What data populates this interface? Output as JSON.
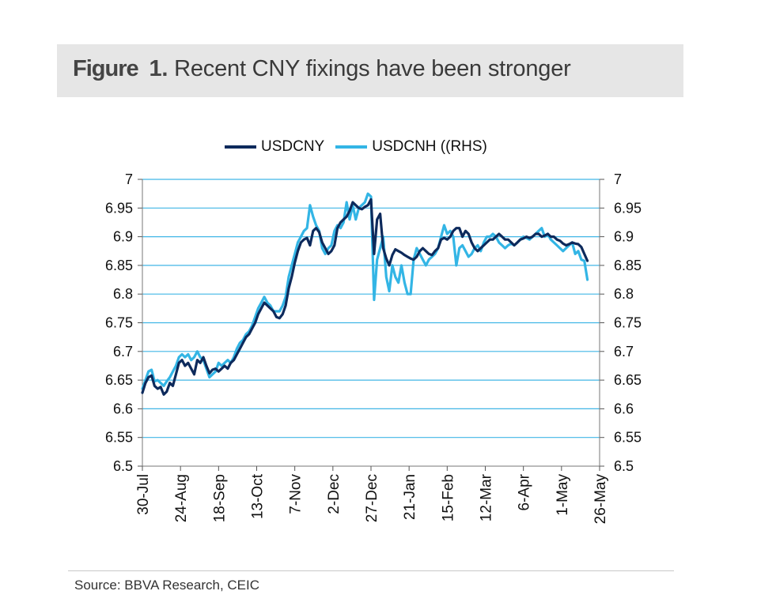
{
  "figure": {
    "label": "Figure",
    "number": "1.",
    "caption": "Recent CNY fixings have been stronger"
  },
  "source": "Source:  BBVA Research,  CEIC",
  "chart_data": {
    "type": "line",
    "title": "",
    "xlabel": "",
    "ylabel": "",
    "y_left": {
      "min": 6.5,
      "max": 7.0,
      "step": 0.05,
      "ticks": [
        "6.5",
        "6.55",
        "6.6",
        "6.65",
        "6.7",
        "6.75",
        "6.8",
        "6.85",
        "6.9",
        "6.95",
        "7"
      ]
    },
    "y_right": {
      "min": 6.5,
      "max": 7.0,
      "step": 0.05,
      "ticks": [
        "6.5",
        "6.55",
        "6.6",
        "6.65",
        "6.7",
        "6.75",
        "6.8",
        "6.85",
        "6.9",
        "6.95",
        "7"
      ]
    },
    "x_ticks": [
      "30-Jul",
      "24-Aug",
      "18-Sep",
      "13-Oct",
      "7-Nov",
      "2-Dec",
      "27-Dec",
      "21-Jan",
      "15-Feb",
      "12-Mar",
      "6-Apr",
      "1-May",
      "26-May"
    ],
    "x_domain_days": [
      0,
      300
    ],
    "grid": "horizontal",
    "legend_position": "top-center",
    "series": [
      {
        "name": "USDCNY",
        "axis": "left",
        "color": "#0d2a5c",
        "points": [
          [
            0,
            6.628
          ],
          [
            2,
            6.645
          ],
          [
            4,
            6.655
          ],
          [
            6,
            6.658
          ],
          [
            8,
            6.64
          ],
          [
            10,
            6.635
          ],
          [
            12,
            6.638
          ],
          [
            14,
            6.625
          ],
          [
            16,
            6.63
          ],
          [
            18,
            6.645
          ],
          [
            20,
            6.64
          ],
          [
            22,
            6.66
          ],
          [
            24,
            6.68
          ],
          [
            26,
            6.685
          ],
          [
            28,
            6.675
          ],
          [
            30,
            6.68
          ],
          [
            32,
            6.67
          ],
          [
            34,
            6.66
          ],
          [
            36,
            6.685
          ],
          [
            38,
            6.68
          ],
          [
            40,
            6.69
          ],
          [
            42,
            6.675
          ],
          [
            44,
            6.662
          ],
          [
            46,
            6.668
          ],
          [
            48,
            6.67
          ],
          [
            50,
            6.665
          ],
          [
            52,
            6.67
          ],
          [
            54,
            6.675
          ],
          [
            56,
            6.67
          ],
          [
            58,
            6.68
          ],
          [
            60,
            6.685
          ],
          [
            62,
            6.695
          ],
          [
            64,
            6.705
          ],
          [
            66,
            6.715
          ],
          [
            68,
            6.725
          ],
          [
            70,
            6.73
          ],
          [
            72,
            6.74
          ],
          [
            74,
            6.75
          ],
          [
            76,
            6.765
          ],
          [
            78,
            6.775
          ],
          [
            80,
            6.785
          ],
          [
            82,
            6.78
          ],
          [
            84,
            6.775
          ],
          [
            86,
            6.77
          ],
          [
            88,
            6.76
          ],
          [
            90,
            6.758
          ],
          [
            92,
            6.765
          ],
          [
            94,
            6.78
          ],
          [
            96,
            6.81
          ],
          [
            98,
            6.83
          ],
          [
            100,
            6.855
          ],
          [
            102,
            6.875
          ],
          [
            104,
            6.89
          ],
          [
            106,
            6.895
          ],
          [
            108,
            6.898
          ],
          [
            110,
            6.885
          ],
          [
            112,
            6.91
          ],
          [
            114,
            6.915
          ],
          [
            116,
            6.908
          ],
          [
            118,
            6.89
          ],
          [
            120,
            6.88
          ],
          [
            122,
            6.87
          ],
          [
            124,
            6.875
          ],
          [
            126,
            6.885
          ],
          [
            128,
            6.915
          ],
          [
            130,
            6.925
          ],
          [
            132,
            6.93
          ],
          [
            134,
            6.935
          ],
          [
            136,
            6.945
          ],
          [
            138,
            6.96
          ],
          [
            140,
            6.955
          ],
          [
            142,
            6.95
          ],
          [
            144,
            6.948
          ],
          [
            146,
            6.952
          ],
          [
            148,
            6.955
          ],
          [
            150,
            6.965
          ],
          [
            152,
            6.87
          ],
          [
            154,
            6.93
          ],
          [
            156,
            6.94
          ],
          [
            158,
            6.88
          ],
          [
            160,
            6.862
          ],
          [
            162,
            6.85
          ],
          [
            164,
            6.868
          ],
          [
            166,
            6.878
          ],
          [
            168,
            6.875
          ],
          [
            170,
            6.872
          ],
          [
            172,
            6.868
          ],
          [
            174,
            6.865
          ],
          [
            176,
            6.862
          ],
          [
            178,
            6.86
          ],
          [
            180,
            6.865
          ],
          [
            182,
            6.875
          ],
          [
            184,
            6.88
          ],
          [
            186,
            6.875
          ],
          [
            188,
            6.87
          ],
          [
            190,
            6.868
          ],
          [
            192,
            6.875
          ],
          [
            194,
            6.88
          ],
          [
            196,
            6.895
          ],
          [
            198,
            6.898
          ],
          [
            200,
            6.895
          ],
          [
            202,
            6.9
          ],
          [
            204,
            6.91
          ],
          [
            206,
            6.915
          ],
          [
            208,
            6.915
          ],
          [
            210,
            6.9
          ],
          [
            212,
            6.91
          ],
          [
            214,
            6.905
          ],
          [
            216,
            6.89
          ],
          [
            218,
            6.88
          ],
          [
            220,
            6.875
          ],
          [
            222,
            6.88
          ],
          [
            224,
            6.885
          ],
          [
            226,
            6.89
          ],
          [
            228,
            6.895
          ],
          [
            230,
            6.895
          ],
          [
            232,
            6.9
          ],
          [
            234,
            6.905
          ],
          [
            236,
            6.9
          ],
          [
            238,
            6.895
          ],
          [
            240,
            6.895
          ],
          [
            242,
            6.89
          ],
          [
            244,
            6.885
          ],
          [
            246,
            6.89
          ],
          [
            248,
            6.895
          ],
          [
            250,
            6.897
          ],
          [
            252,
            6.9
          ],
          [
            254,
            6.898
          ],
          [
            256,
            6.9
          ],
          [
            258,
            6.905
          ],
          [
            260,
            6.905
          ],
          [
            262,
            6.9
          ],
          [
            264,
            6.902
          ],
          [
            266,
            6.905
          ],
          [
            268,
            6.9
          ],
          [
            270,
            6.9
          ],
          [
            272,
            6.895
          ],
          [
            274,
            6.893
          ],
          [
            276,
            6.888
          ],
          [
            278,
            6.885
          ],
          [
            280,
            6.887
          ],
          [
            282,
            6.89
          ],
          [
            284,
            6.888
          ],
          [
            286,
            6.887
          ],
          [
            288,
            6.882
          ],
          [
            290,
            6.87
          ],
          [
            292,
            6.858
          ]
        ]
      },
      {
        "name": "USDCNH ((RHS)",
        "axis": "right",
        "color": "#33b5e5",
        "points": [
          [
            0,
            6.635
          ],
          [
            2,
            6.65
          ],
          [
            4,
            6.665
          ],
          [
            6,
            6.668
          ],
          [
            8,
            6.648
          ],
          [
            10,
            6.65
          ],
          [
            12,
            6.645
          ],
          [
            14,
            6.64
          ],
          [
            16,
            6.648
          ],
          [
            18,
            6.655
          ],
          [
            20,
            6.665
          ],
          [
            22,
            6.675
          ],
          [
            24,
            6.69
          ],
          [
            26,
            6.695
          ],
          [
            28,
            6.69
          ],
          [
            30,
            6.695
          ],
          [
            32,
            6.685
          ],
          [
            34,
            6.69
          ],
          [
            36,
            6.7
          ],
          [
            38,
            6.69
          ],
          [
            40,
            6.685
          ],
          [
            42,
            6.67
          ],
          [
            44,
            6.655
          ],
          [
            46,
            6.66
          ],
          [
            48,
            6.665
          ],
          [
            50,
            6.68
          ],
          [
            52,
            6.675
          ],
          [
            54,
            6.68
          ],
          [
            56,
            6.685
          ],
          [
            58,
            6.68
          ],
          [
            60,
            6.69
          ],
          [
            62,
            6.705
          ],
          [
            64,
            6.715
          ],
          [
            66,
            6.72
          ],
          [
            68,
            6.73
          ],
          [
            70,
            6.735
          ],
          [
            72,
            6.745
          ],
          [
            74,
            6.76
          ],
          [
            76,
            6.775
          ],
          [
            78,
            6.785
          ],
          [
            80,
            6.795
          ],
          [
            82,
            6.785
          ],
          [
            84,
            6.78
          ],
          [
            86,
            6.77
          ],
          [
            88,
            6.77
          ],
          [
            90,
            6.77
          ],
          [
            92,
            6.78
          ],
          [
            94,
            6.795
          ],
          [
            96,
            6.83
          ],
          [
            98,
            6.85
          ],
          [
            100,
            6.87
          ],
          [
            102,
            6.89
          ],
          [
            104,
            6.9
          ],
          [
            106,
            6.91
          ],
          [
            108,
            6.915
          ],
          [
            110,
            6.955
          ],
          [
            112,
            6.935
          ],
          [
            114,
            6.92
          ],
          [
            116,
            6.91
          ],
          [
            118,
            6.88
          ],
          [
            120,
            6.87
          ],
          [
            122,
            6.88
          ],
          [
            124,
            6.885
          ],
          [
            126,
            6.91
          ],
          [
            128,
            6.92
          ],
          [
            130,
            6.915
          ],
          [
            132,
            6.925
          ],
          [
            134,
            6.96
          ],
          [
            136,
            6.93
          ],
          [
            138,
            6.955
          ],
          [
            140,
            6.93
          ],
          [
            142,
            6.95
          ],
          [
            144,
            6.955
          ],
          [
            146,
            6.96
          ],
          [
            148,
            6.975
          ],
          [
            150,
            6.97
          ],
          [
            152,
            6.79
          ],
          [
            154,
            6.86
          ],
          [
            156,
            6.88
          ],
          [
            158,
            6.9
          ],
          [
            160,
            6.83
          ],
          [
            162,
            6.805
          ],
          [
            164,
            6.85
          ],
          [
            166,
            6.83
          ],
          [
            168,
            6.82
          ],
          [
            170,
            6.85
          ],
          [
            172,
            6.82
          ],
          [
            174,
            6.8
          ],
          [
            176,
            6.8
          ],
          [
            178,
            6.86
          ],
          [
            180,
            6.88
          ],
          [
            182,
            6.87
          ],
          [
            184,
            6.86
          ],
          [
            186,
            6.85
          ],
          [
            188,
            6.86
          ],
          [
            190,
            6.865
          ],
          [
            192,
            6.87
          ],
          [
            194,
            6.88
          ],
          [
            196,
            6.9
          ],
          [
            198,
            6.92
          ],
          [
            200,
            6.905
          ],
          [
            202,
            6.91
          ],
          [
            204,
            6.9
          ],
          [
            206,
            6.85
          ],
          [
            208,
            6.88
          ],
          [
            210,
            6.885
          ],
          [
            212,
            6.875
          ],
          [
            214,
            6.865
          ],
          [
            216,
            6.87
          ],
          [
            218,
            6.88
          ],
          [
            220,
            6.885
          ],
          [
            222,
            6.875
          ],
          [
            224,
            6.89
          ],
          [
            226,
            6.9
          ],
          [
            228,
            6.9
          ],
          [
            230,
            6.905
          ],
          [
            232,
            6.9
          ],
          [
            234,
            6.89
          ],
          [
            236,
            6.885
          ],
          [
            238,
            6.88
          ],
          [
            240,
            6.885
          ],
          [
            242,
            6.888
          ],
          [
            244,
            6.885
          ],
          [
            246,
            6.89
          ],
          [
            248,
            6.895
          ],
          [
            250,
            6.9
          ],
          [
            252,
            6.898
          ],
          [
            254,
            6.895
          ],
          [
            256,
            6.9
          ],
          [
            258,
            6.905
          ],
          [
            260,
            6.91
          ],
          [
            262,
            6.915
          ],
          [
            264,
            6.9
          ],
          [
            266,
            6.905
          ],
          [
            268,
            6.895
          ],
          [
            270,
            6.89
          ],
          [
            272,
            6.885
          ],
          [
            274,
            6.88
          ],
          [
            276,
            6.875
          ],
          [
            278,
            6.88
          ],
          [
            280,
            6.885
          ],
          [
            282,
            6.89
          ],
          [
            284,
            6.87
          ],
          [
            286,
            6.875
          ],
          [
            288,
            6.86
          ],
          [
            290,
            6.858
          ],
          [
            292,
            6.825
          ]
        ]
      }
    ]
  }
}
